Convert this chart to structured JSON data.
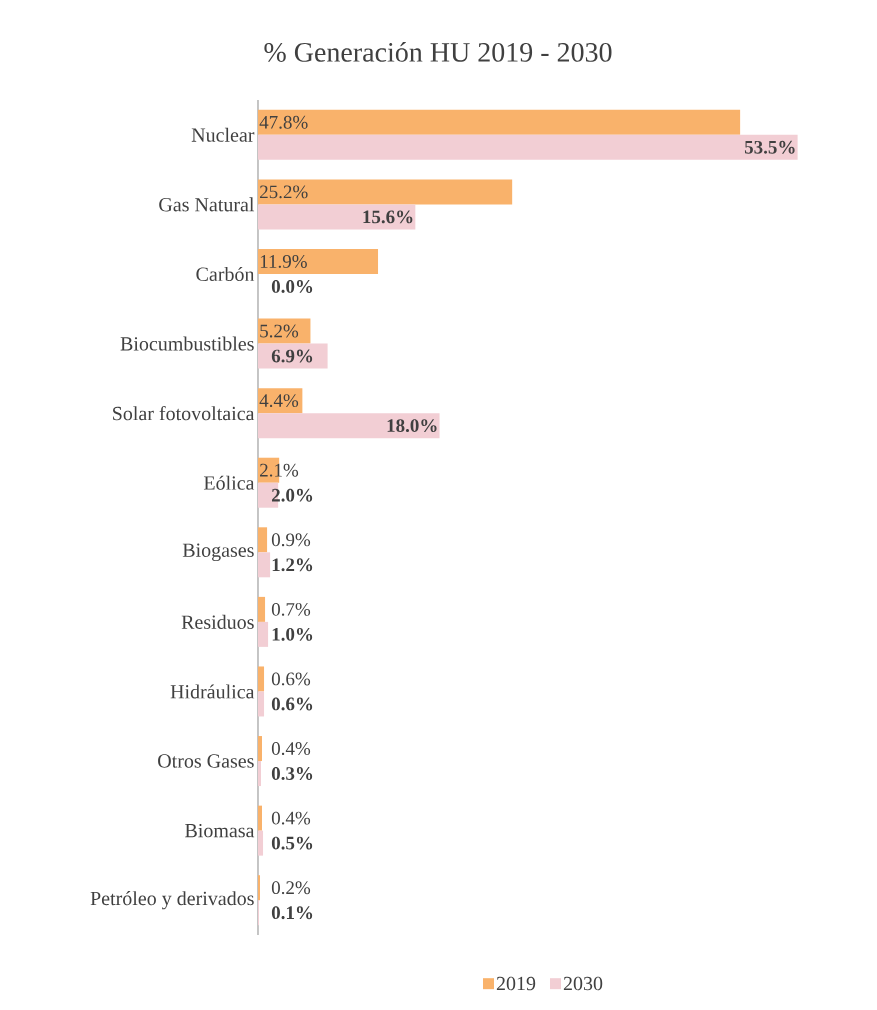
{
  "chart_data": {
    "type": "bar",
    "orientation": "horizontal",
    "title": "% Generación HU 2019 - 2030",
    "categories": [
      "Nuclear",
      "Gas Natural",
      "Carbón",
      "Biocumbustibles",
      "Solar fotovoltaica",
      "Eólica",
      "Biogases",
      "Residuos",
      "Hidráulica",
      "Otros Gases",
      "Biomasa",
      "Petróleo y derivados"
    ],
    "series": [
      {
        "name": "2019",
        "color": "#f9b26b",
        "values": [
          47.8,
          25.2,
          11.9,
          5.2,
          4.4,
          2.1,
          0.9,
          0.7,
          0.6,
          0.4,
          0.4,
          0.2
        ],
        "value_labels": [
          "47.8%",
          "25.2%",
          "11.9%",
          "5.2%",
          "4.4%",
          "2.1%",
          "0.9%",
          "0.7%",
          "0.6%",
          "0.4%",
          "0.4%",
          "0.2%"
        ]
      },
      {
        "name": "2030",
        "color": "#f2ced4",
        "values": [
          53.5,
          15.6,
          0.0,
          6.9,
          18.0,
          2.0,
          1.2,
          1.0,
          0.6,
          0.3,
          0.5,
          0.1
        ],
        "value_labels": [
          "53.5%",
          "15.6%",
          "0.0%",
          "6.9%",
          "18.0%",
          "2.0%",
          "1.2%",
          "1.0%",
          "0.6%",
          "0.3%",
          "0.5%",
          "0.1%"
        ]
      }
    ],
    "legend": "bottom"
  }
}
